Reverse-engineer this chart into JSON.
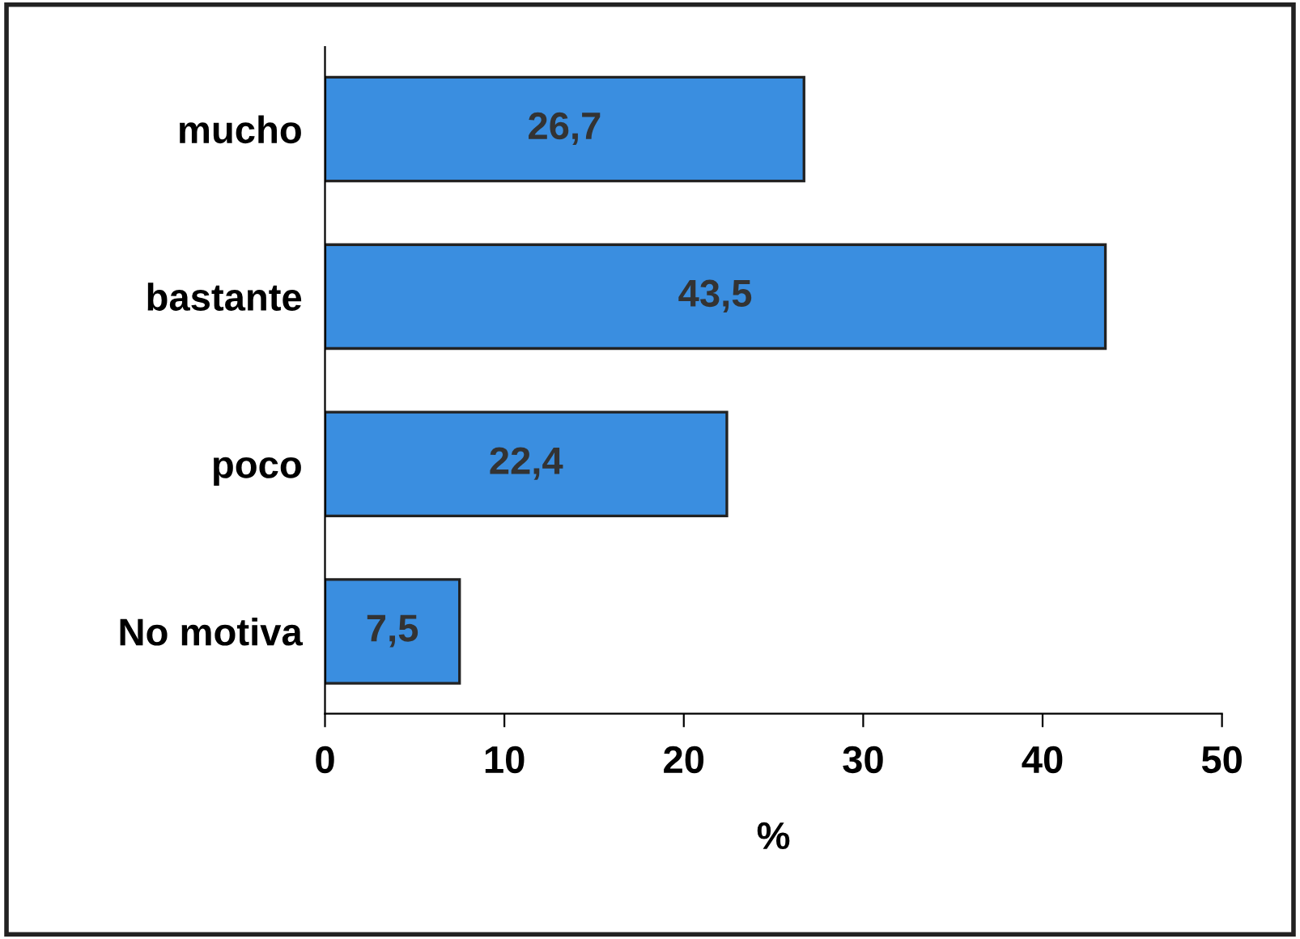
{
  "chart_data": {
    "type": "bar",
    "orientation": "horizontal",
    "xlabel": "%",
    "categories": [
      "mucho",
      "bastante",
      "poco",
      "No motiva"
    ],
    "values": [
      26.7,
      43.5,
      22.4,
      7.5
    ],
    "value_labels": [
      "26,7",
      "43,5",
      "22,4",
      "7,5"
    ],
    "color": "#3a8ee0",
    "xlim": [
      0,
      50
    ],
    "xticks": [
      0,
      10,
      20,
      30,
      40,
      50
    ],
    "grid": false
  }
}
